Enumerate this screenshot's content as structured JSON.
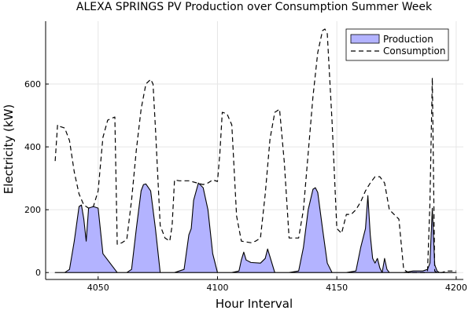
{
  "chart_data": {
    "type": "area",
    "title": "ALEXA SPRINGS PV Production over Consumption Summer Week",
    "xlabel": "Hour Interval",
    "ylabel": "Electricity (kW)",
    "xlim": [
      4028,
      4203
    ],
    "ylim": [
      -22,
      800
    ],
    "xticks": [
      4050,
      4100,
      4150,
      4200
    ],
    "yticks": [
      0,
      200,
      400,
      600
    ],
    "grid": true,
    "legend_position": "top-right",
    "colors": {
      "production_fill": "#b3b3ff",
      "line": "#000000"
    },
    "series": [
      {
        "name": "Production",
        "style": "filled area with solid outline",
        "x": [
          4032,
          4036,
          4038,
          4040,
          4042,
          4043,
          4044,
          4045,
          4046,
          4048,
          4050,
          4052,
          4058,
          4062,
          4064,
          4066,
          4068,
          4069,
          4070,
          4072,
          4074,
          4076,
          4082,
          4086,
          4088,
          4089,
          4090,
          4092,
          4094,
          4096,
          4098,
          4100,
          4106,
          4109,
          4110,
          4111,
          4112,
          4114,
          4118,
          4120,
          4121,
          4122,
          4124,
          4130,
          4134,
          4136,
          4138,
          4140,
          4141,
          4142,
          4144,
          4146,
          4148,
          4154,
          4158,
          4160,
          4162,
          4163,
          4164,
          4165,
          4166,
          4167,
          4168,
          4169,
          4170,
          4171,
          4172,
          4178,
          4182,
          4186,
          4188,
          4189,
          4190,
          4191,
          4192,
          4193,
          4200
        ],
        "values": [
          0,
          0,
          10,
          100,
          210,
          215,
          170,
          100,
          205,
          210,
          205,
          60,
          0,
          0,
          10,
          140,
          260,
          280,
          282,
          260,
          140,
          0,
          0,
          10,
          120,
          140,
          230,
          285,
          270,
          200,
          60,
          0,
          0,
          5,
          40,
          65,
          40,
          32,
          30,
          45,
          75,
          50,
          0,
          0,
          5,
          80,
          200,
          265,
          270,
          255,
          140,
          30,
          0,
          0,
          5,
          80,
          140,
          245,
          120,
          45,
          30,
          45,
          15,
          0,
          45,
          10,
          0,
          0,
          5,
          5,
          10,
          30,
          205,
          25,
          5,
          0,
          0
        ]
      },
      {
        "name": "Consumption",
        "style": "dashed line",
        "x": [
          4032,
          4033,
          4034,
          4036,
          4038,
          4040,
          4042,
          4044,
          4046,
          4048,
          4050,
          4052,
          4054,
          4056,
          4057,
          4058,
          4060,
          4062,
          4064,
          4066,
          4068,
          4070,
          4072,
          4073,
          4074,
          4076,
          4078,
          4080,
          4081,
          4082,
          4084,
          4088,
          4094,
          4096,
          4098,
          4100,
          4101,
          4102,
          4104,
          4106,
          4108,
          4110,
          4114,
          4116,
          4118,
          4120,
          4122,
          4124,
          4126,
          4128,
          4130,
          4134,
          4136,
          4138,
          4140,
          4142,
          4144,
          4145,
          4146,
          4148,
          4150,
          4152,
          4154,
          4156,
          4158,
          4160,
          4162,
          4164,
          4166,
          4168,
          4170,
          4172,
          4174,
          4176,
          4178,
          4180,
          4182,
          4184,
          4186,
          4187,
          4188,
          4189,
          4190,
          4191,
          4192,
          4193,
          4194,
          4196,
          4198,
          4200
        ],
        "values": [
          355,
          470,
          465,
          460,
          420,
          320,
          250,
          215,
          205,
          210,
          260,
          430,
          485,
          492,
          495,
          90,
          95,
          105,
          230,
          390,
          520,
          600,
          615,
          600,
          460,
          150,
          110,
          100,
          150,
          295,
          292,
          292,
          280,
          285,
          295,
          290,
          380,
          510,
          505,
          470,
          180,
          100,
          95,
          100,
          110,
          250,
          425,
          510,
          520,
          350,
          110,
          110,
          200,
          380,
          560,
          700,
          770,
          775,
          760,
          480,
          140,
          125,
          185,
          185,
          200,
          225,
          260,
          285,
          305,
          305,
          285,
          200,
          185,
          170,
          10,
          0,
          0,
          0,
          0,
          0,
          5,
          220,
          620,
          5,
          0,
          0,
          0,
          5,
          5,
          5
        ]
      }
    ]
  }
}
